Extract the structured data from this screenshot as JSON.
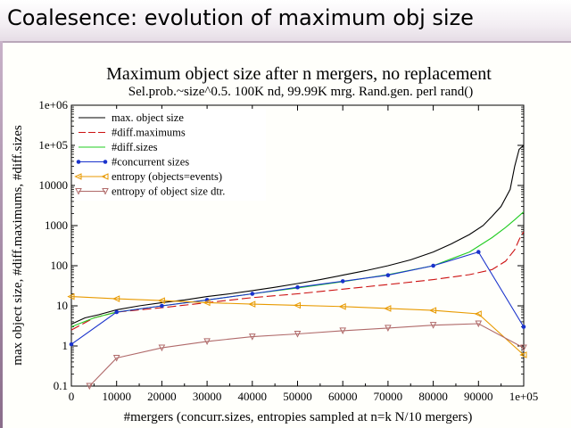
{
  "slide": {
    "title": "Coalesence: evolution of maximum obj size"
  },
  "chart_data": {
    "type": "line",
    "title": "Maximum object size after n mergers, no replacement",
    "subtitle": "Sel.prob.~size^0.5. 100K nd, 99.99K mrg. Rand.gen. perl rand()",
    "xlabel": "#mergers (concurr.sizes, entropies sampled at n=k N/10 mergers)",
    "ylabel": "max object size, #diff.maximums, #diff.sizes",
    "x_scale": "linear",
    "y_scale": "log",
    "xlim": [
      0,
      100000
    ],
    "ylim": [
      0.1,
      1000000
    ],
    "x_ticks": [
      "0",
      "10000",
      "20000",
      "30000",
      "40000",
      "50000",
      "60000",
      "70000",
      "80000",
      "90000",
      "1e+05"
    ],
    "y_ticks": [
      "0.1",
      "1",
      "10",
      "100",
      "1000",
      "10000",
      "1e+05",
      "1e+06"
    ],
    "legend_position": "top-left",
    "series": [
      {
        "name": "max. object size",
        "color": "#000000",
        "style": "solid",
        "x": [
          0,
          3000,
          6000,
          10000,
          15000,
          20000,
          25000,
          30000,
          35000,
          40000,
          45000,
          50000,
          55000,
          60000,
          65000,
          70000,
          75000,
          80000,
          84000,
          88000,
          91000,
          93000,
          95000,
          97000,
          98000,
          99000,
          99990
        ],
        "y": [
          3.5,
          5,
          6,
          8,
          10,
          12,
          14,
          17,
          20,
          24,
          29,
          36,
          45,
          58,
          75,
          100,
          140,
          220,
          350,
          600,
          1000,
          1700,
          3000,
          8000,
          30000,
          80000,
          100000
        ]
      },
      {
        "name": "#diff.maximums",
        "color": "#cc1111",
        "style": "dashed",
        "x": [
          0,
          5000,
          10000,
          20000,
          30000,
          40000,
          50000,
          60000,
          70000,
          80000,
          88000,
          93000,
          96000,
          98000,
          99000,
          99990
        ],
        "y": [
          2.5,
          5,
          7,
          9,
          12,
          16,
          20,
          26,
          34,
          45,
          60,
          80,
          130,
          250,
          450,
          700
        ]
      },
      {
        "name": "#diff.sizes",
        "color": "#22cc22",
        "style": "solid",
        "x": [
          0,
          5000,
          10000,
          20000,
          30000,
          40000,
          50000,
          60000,
          70000,
          80000,
          88000,
          93000,
          96000,
          98000,
          99990
        ],
        "y": [
          3,
          5,
          7,
          10,
          14,
          20,
          28,
          40,
          60,
          100,
          220,
          500,
          900,
          1400,
          2200
        ]
      },
      {
        "name": "#concurrent sizes",
        "color": "#1a33cc",
        "style": "solid",
        "marker": "dot",
        "x": [
          0,
          10000,
          20000,
          30000,
          40000,
          50000,
          60000,
          70000,
          80000,
          90000,
          99990
        ],
        "y": [
          1.1,
          7,
          10,
          14,
          20,
          29,
          41,
          58,
          100,
          220,
          3
        ]
      },
      {
        "name": "entropy (objects=events)",
        "color": "#e89a00",
        "style": "solid",
        "marker": "triangle-left",
        "x": [
          0,
          10000,
          20000,
          30000,
          40000,
          50000,
          60000,
          70000,
          80000,
          90000,
          99990
        ],
        "y": [
          17,
          15,
          13.5,
          12,
          11,
          10.3,
          9.6,
          8.6,
          7.7,
          6.3,
          0.6
        ]
      },
      {
        "name": "entropy of  object size dtr.",
        "color": "#b06a6a",
        "style": "solid",
        "marker": "triangle-down",
        "x": [
          4000,
          10000,
          20000,
          30000,
          40000,
          50000,
          60000,
          70000,
          80000,
          90000,
          99990
        ],
        "y": [
          0.1,
          0.5,
          0.9,
          1.3,
          1.7,
          2.0,
          2.4,
          2.8,
          3.3,
          3.6,
          0.9
        ]
      }
    ]
  }
}
